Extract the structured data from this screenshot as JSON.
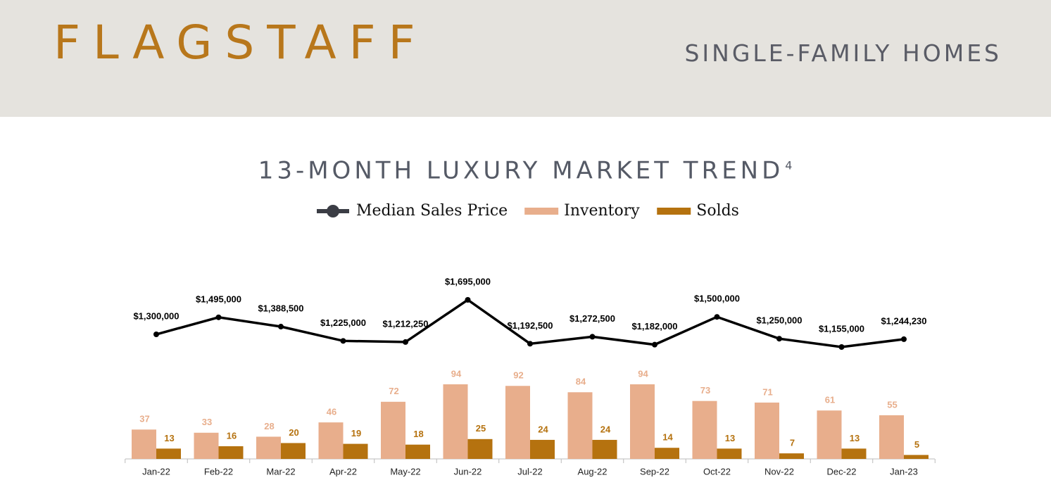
{
  "header": {
    "city": "FLAGSTAFF",
    "segment": "SINGLE-FAMILY HOMES"
  },
  "chart_data": {
    "type": "bar",
    "title": "13-MONTH LUXURY MARKET TREND",
    "title_superscript": "4",
    "categories": [
      "Jan-22",
      "Feb-22",
      "Mar-22",
      "Apr-22",
      "May-22",
      "Jun-22",
      "Jul-22",
      "Aug-22",
      "Sep-22",
      "Oct-22",
      "Nov-22",
      "Dec-22",
      "Jan-23"
    ],
    "series": [
      {
        "name": "Median Sales Price",
        "type": "line",
        "color": "#000000",
        "values": [
          1300000,
          1495000,
          1388500,
          1225000,
          1212250,
          1695000,
          1192500,
          1272500,
          1182000,
          1500000,
          1250000,
          1155000,
          1244230
        ],
        "value_labels": [
          "$1,300,000",
          "$1,495,000",
          "$1,388,500",
          "$1,225,000",
          "$1,212,250",
          "$1,695,000",
          "$1,192,500",
          "$1,272,500",
          "$1,182,000",
          "$1,500,000",
          "$1,250,000",
          "$1,155,000",
          "$1,244,230"
        ]
      },
      {
        "name": "Inventory",
        "type": "bar",
        "color": "#e8ae8c",
        "values": [
          37,
          33,
          28,
          46,
          72,
          94,
          92,
          84,
          94,
          73,
          71,
          61,
          55
        ]
      },
      {
        "name": "Solds",
        "type": "bar",
        "color": "#b5720f",
        "values": [
          13,
          16,
          20,
          19,
          18,
          25,
          24,
          24,
          14,
          13,
          7,
          13,
          5
        ]
      }
    ]
  }
}
